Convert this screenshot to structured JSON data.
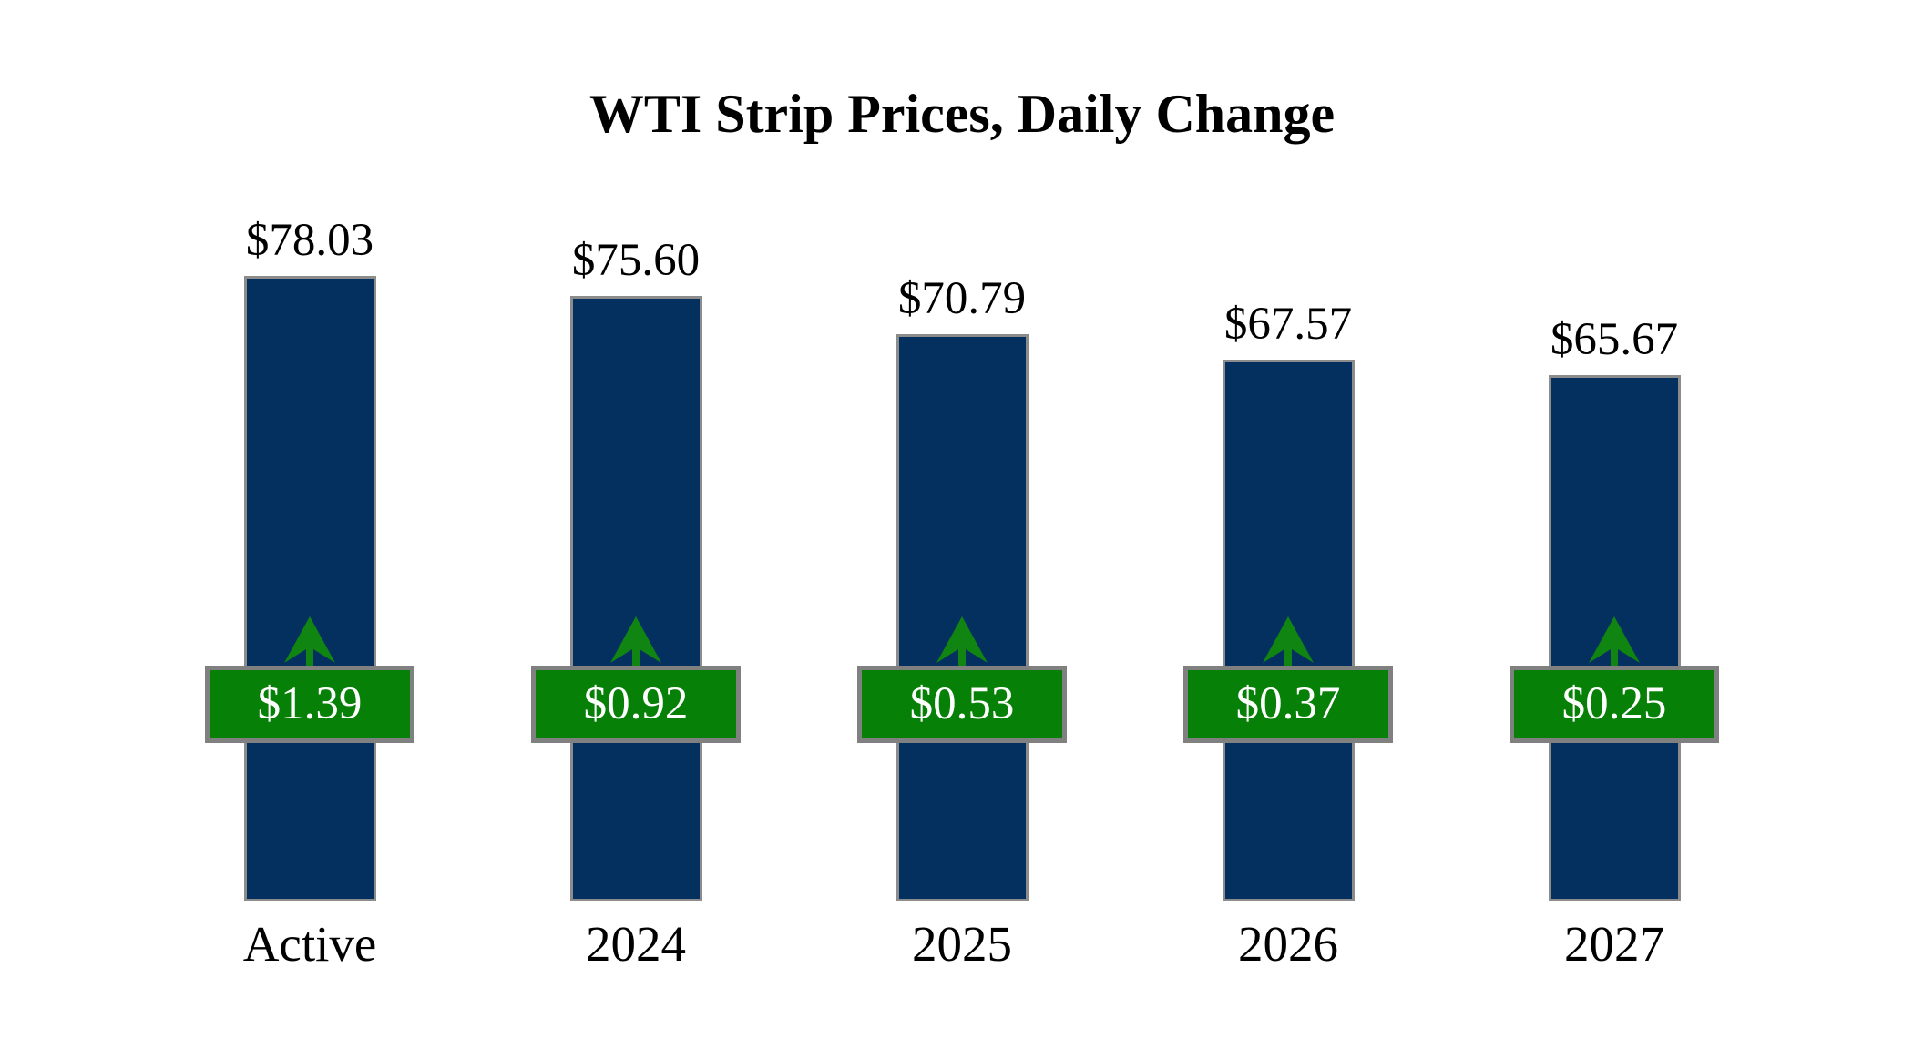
{
  "chart_data": {
    "type": "bar",
    "title": "WTI Strip Prices, Daily Change",
    "categories": [
      "Active",
      "2024",
      "2025",
      "2026",
      "2027"
    ],
    "series": [
      {
        "name": "WTI strip price (USD per barrel)",
        "values": [
          78.03,
          75.6,
          70.79,
          67.57,
          65.67
        ]
      },
      {
        "name": "Daily change (USD per barrel)",
        "values": [
          1.39,
          0.92,
          0.53,
          0.37,
          0.25
        ]
      }
    ],
    "price_labels": [
      "$78.03",
      "$75.60",
      "$70.79",
      "$67.57",
      "$65.67"
    ],
    "change_labels": [
      "$1.39",
      "$0.92",
      "$0.53",
      "$0.37",
      "$0.25"
    ],
    "change_direction": "up",
    "legend_position": "none",
    "grid": false,
    "value_axis": "hidden",
    "baseline_value": 0,
    "icons": {
      "change_indicator": "up-arrow-icon"
    },
    "colors": {
      "title_text": "#000000",
      "label_text": "#000000",
      "bar_fill": "#04305F",
      "bar_border": "#8C8C8C",
      "badge_fill": "#078007",
      "badge_border": "#808080",
      "badge_text": "#FFFFFF",
      "arrow": "#118511",
      "background": "#FFFFFF"
    }
  }
}
